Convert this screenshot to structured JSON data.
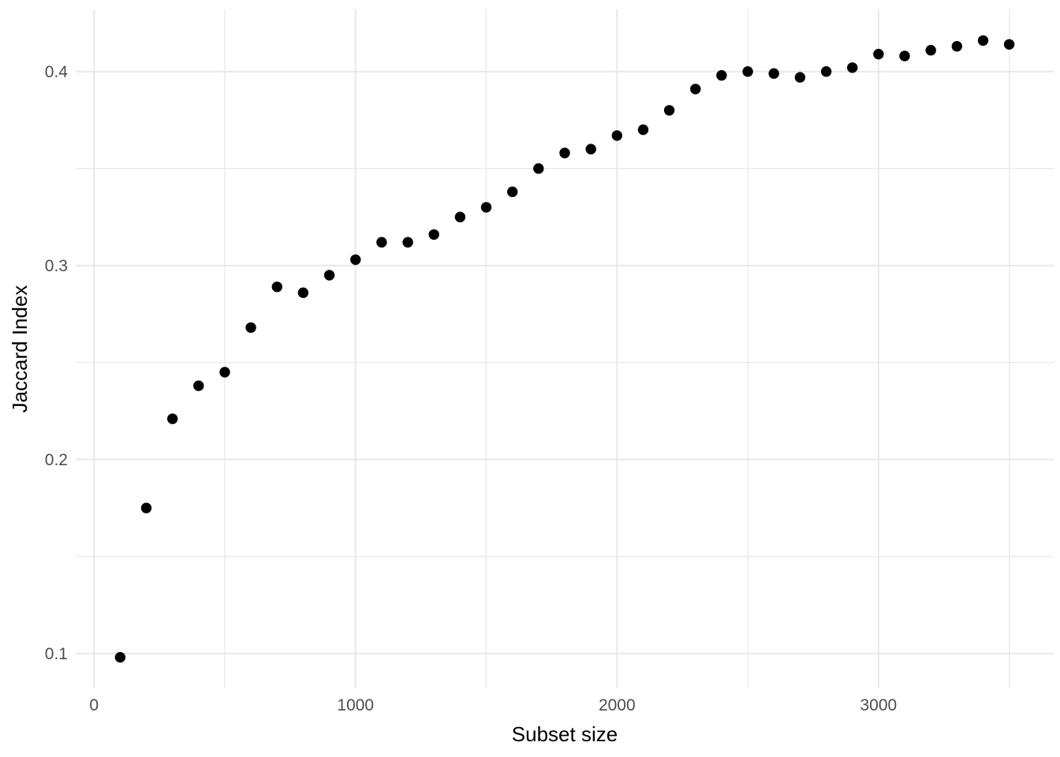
{
  "figure": {
    "background": "#ffffff"
  },
  "chart_data": {
    "type": "scatter",
    "title": "",
    "xlabel": "Subset size",
    "ylabel": "Jaccard Index",
    "x": [
      100,
      200,
      300,
      400,
      500,
      600,
      700,
      800,
      900,
      1000,
      1100,
      1200,
      1300,
      1400,
      1500,
      1600,
      1700,
      1800,
      1900,
      2000,
      2100,
      2200,
      2300,
      2400,
      2500,
      2600,
      2700,
      2800,
      2900,
      3000,
      3100,
      3200,
      3300,
      3400,
      3500
    ],
    "y": [
      0.098,
      0.175,
      0.221,
      0.238,
      0.245,
      0.268,
      0.289,
      0.286,
      0.295,
      0.303,
      0.312,
      0.312,
      0.316,
      0.325,
      0.33,
      0.338,
      0.35,
      0.358,
      0.36,
      0.367,
      0.37,
      0.38,
      0.391,
      0.398,
      0.4,
      0.399,
      0.397,
      0.4,
      0.402,
      0.409,
      0.408,
      0.411,
      0.413,
      0.416,
      0.414
    ],
    "xlim": [
      -70,
      3670
    ],
    "ylim": [
      0.082,
      0.432
    ],
    "x_major_ticks": [
      0,
      1000,
      2000,
      3000
    ],
    "x_tick_labels": [
      "0",
      "1000",
      "2000",
      "3000"
    ],
    "x_minor_ticks": [
      500,
      1500,
      2500,
      3500
    ],
    "y_major_ticks": [
      0.1,
      0.2,
      0.3,
      0.4
    ],
    "y_tick_labels": [
      "0.1",
      "0.2",
      "0.3",
      "0.4"
    ],
    "y_minor_ticks": [
      0.15,
      0.25,
      0.35
    ],
    "grid": true,
    "legend_position": "none",
    "point_color": "#000000",
    "point_radius": 6.7,
    "grid_color": "#e8e8e8",
    "tick_label_color": "#4d4d4d",
    "axis_title_color": "#000000"
  }
}
